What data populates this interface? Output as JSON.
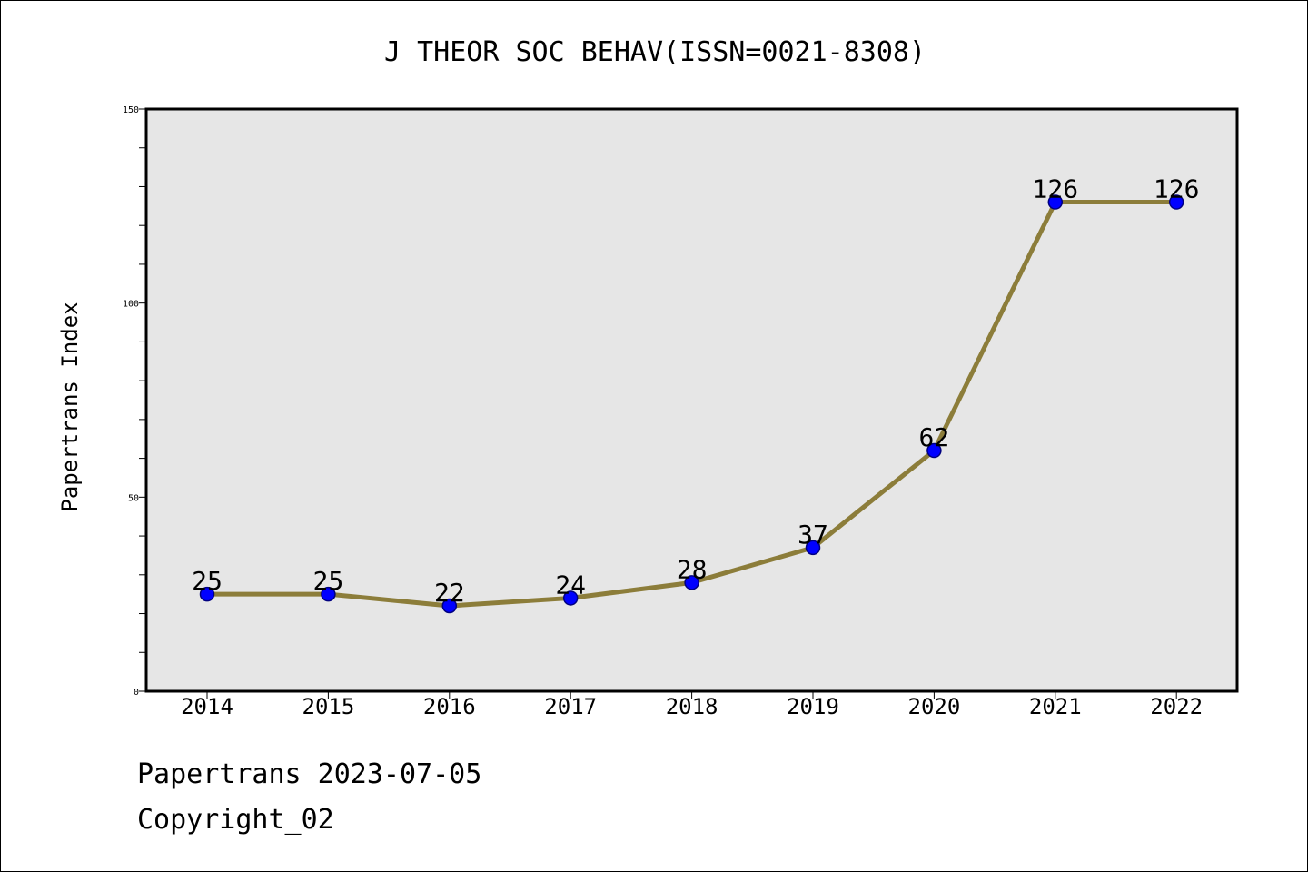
{
  "chart_data": {
    "type": "line",
    "title": "J THEOR SOC BEHAV(ISSN=0021-8308)",
    "xlabel": "",
    "ylabel": "Papertrans Index",
    "categories": [
      "2014",
      "2015",
      "2016",
      "2017",
      "2018",
      "2019",
      "2020",
      "2021",
      "2022"
    ],
    "series": [
      {
        "values": [
          25,
          25,
          22,
          24,
          28,
          37,
          62,
          126,
          126
        ]
      }
    ],
    "data_labels": [
      "25",
      "25",
      "22",
      "24",
      "28",
      "37",
      "62",
      "126",
      "126"
    ],
    "ylim": [
      0,
      150
    ],
    "yticks_labeled": [
      0,
      50,
      100,
      150
    ],
    "ytick_labels": [
      "0",
      "50",
      "100",
      "150"
    ],
    "yticks_minor_step": 10,
    "grid": false,
    "colors": {
      "line": "#8c7d3a",
      "marker_fill": "#0000ff",
      "marker_edge": "#000080",
      "plot_background": "#e6e6e6"
    }
  },
  "footer": {
    "line1": "Papertrans 2023-07-05",
    "line2": "Copyright_02"
  }
}
